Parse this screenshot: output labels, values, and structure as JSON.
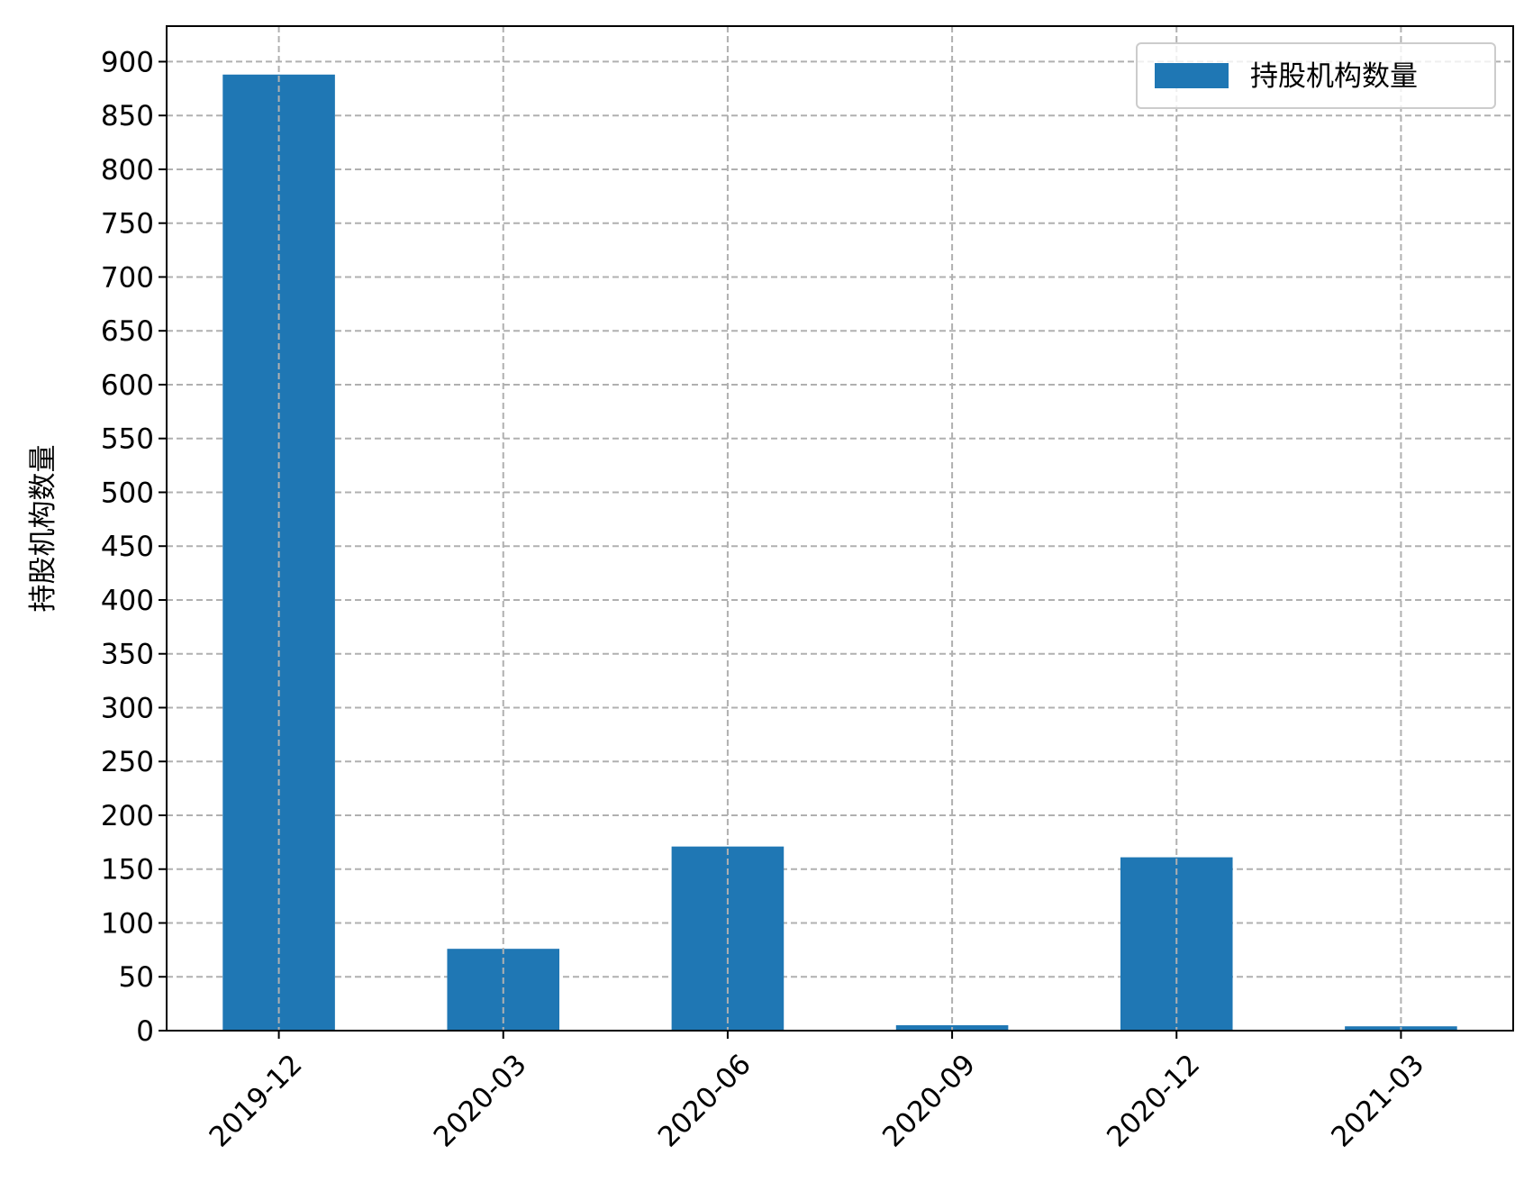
{
  "chart_data": {
    "type": "bar",
    "categories": [
      "2019-12",
      "2020-03",
      "2020-06",
      "2020-09",
      "2020-12",
      "2021-03"
    ],
    "series": [
      {
        "name": "持股机构数量",
        "values": [
          888,
          76,
          171,
          5,
          161,
          4
        ],
        "color": "#1f77b4"
      }
    ],
    "title": "",
    "xlabel": "",
    "ylabel": "持股机构数量",
    "ylim": [
      0,
      933
    ],
    "yticks": [
      0,
      50,
      100,
      150,
      200,
      250,
      300,
      350,
      400,
      450,
      500,
      550,
      600,
      650,
      700,
      750,
      800,
      850,
      900
    ],
    "grid": true,
    "grid_style": "dashed",
    "legend_position": "top-right",
    "x_tick_rotation": 45
  }
}
